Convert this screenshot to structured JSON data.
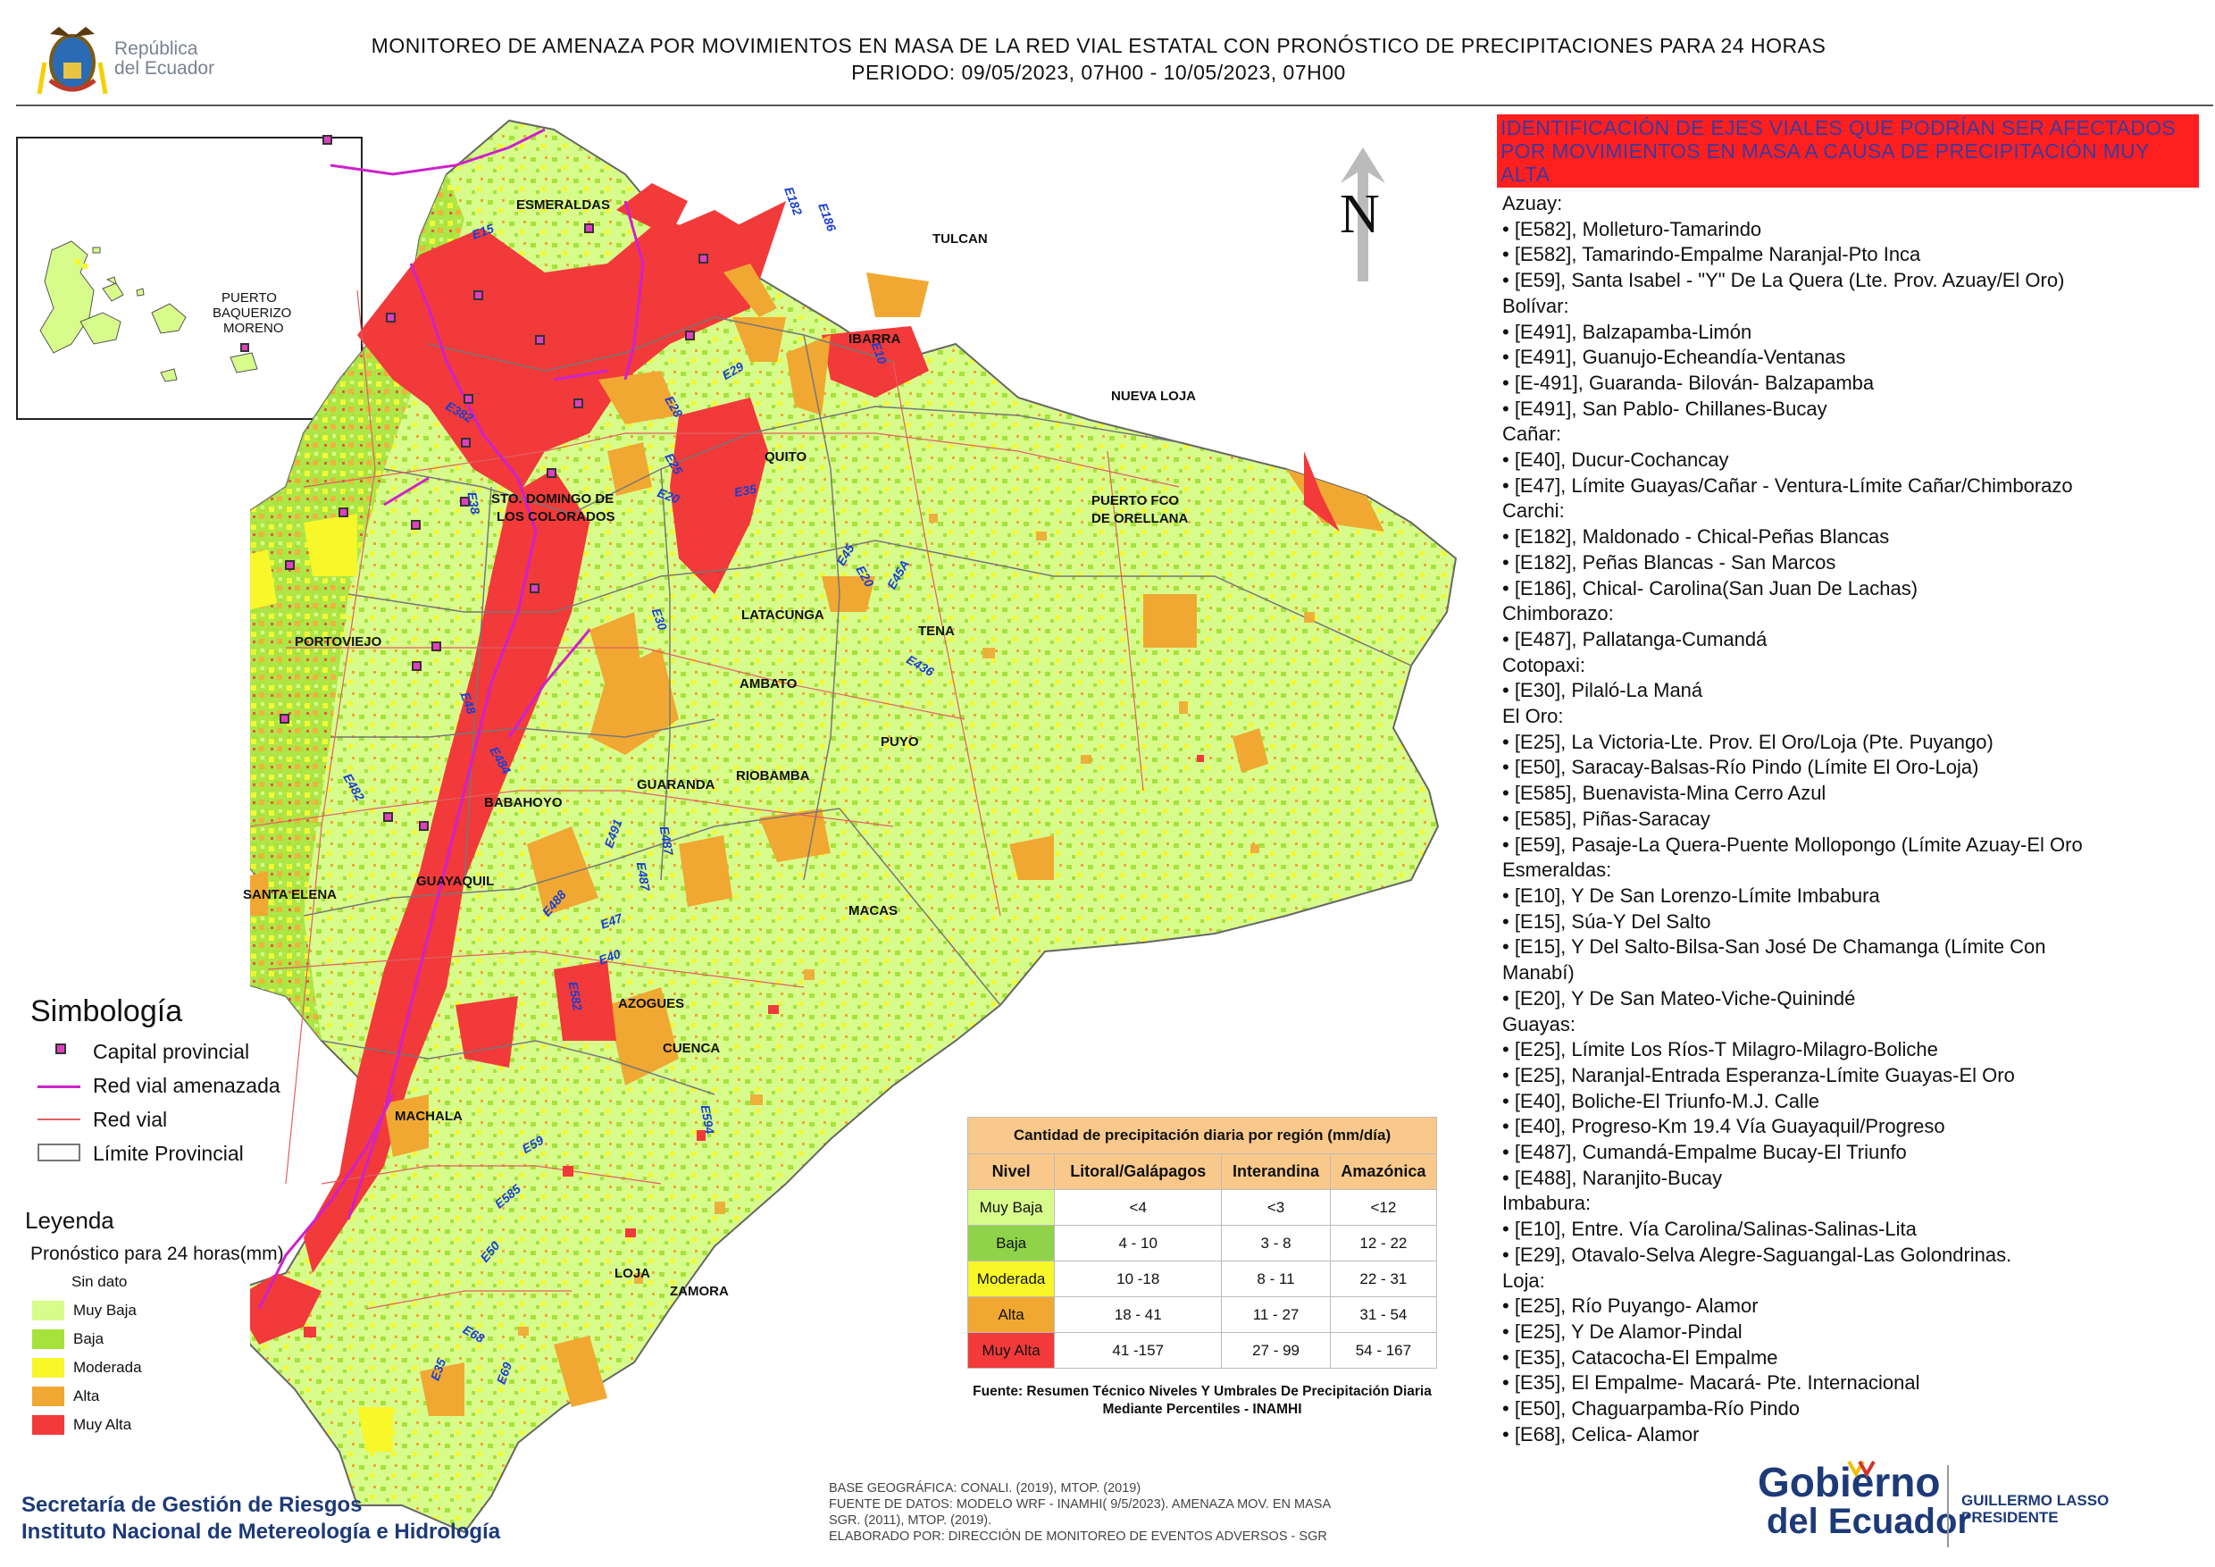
{
  "header": {
    "logo_text": "República\ndel Ecuador",
    "title_line1": "MONITOREO DE AMENAZA POR MOVIMIENTOS EN MASA DE LA RED VIAL  ESTATAL  CON PRONÓSTICO  DE  PRECIPITACIONES PARA 24 HORAS",
    "title_line2": "PERIODO: 09/05/2023, 07H00 - 10/05/2023, 07H00"
  },
  "inset": {
    "label_line1": "PUERTO",
    "label_line2": "BAQUERIZO",
    "label_line3": "MORENO"
  },
  "north_label": "N",
  "cities": [
    {
      "name": "ESMERALDAS"
    },
    {
      "name": "TULCAN"
    },
    {
      "name": "IBARRA"
    },
    {
      "name": "NUEVA LOJA"
    },
    {
      "name": "QUITO"
    },
    {
      "name": "STO. DOMINGO DE"
    },
    {
      "name": "LOS COLORADOS"
    },
    {
      "name": "PUERTO FCO"
    },
    {
      "name": "DE ORELLANA"
    },
    {
      "name": "LATACUNGA"
    },
    {
      "name": "TENA"
    },
    {
      "name": "PORTOVIEJO"
    },
    {
      "name": "AMBATO"
    },
    {
      "name": "PUYO"
    },
    {
      "name": "GUARANDA"
    },
    {
      "name": "RIOBAMBA"
    },
    {
      "name": "BABAHOYO"
    },
    {
      "name": "SANTA ELENA"
    },
    {
      "name": "GUAYAQUIL"
    },
    {
      "name": "MACAS"
    },
    {
      "name": "AZOGUES"
    },
    {
      "name": "CUENCA"
    },
    {
      "name": "MACHALA"
    },
    {
      "name": "LOJA"
    },
    {
      "name": "ZAMORA"
    }
  ],
  "roads": [
    "E15",
    "E182",
    "E186",
    "E10",
    "E28",
    "E29",
    "E382",
    "E25",
    "E20",
    "E35",
    "E38",
    "E30",
    "E45A",
    "E20",
    "E45",
    "E436",
    "E48",
    "E484",
    "E482",
    "E491",
    "E487",
    "E487",
    "E488",
    "E47",
    "E40",
    "E582",
    "E594",
    "E59",
    "E585",
    "E50",
    "E68",
    "E35",
    "E69"
  ],
  "alert": {
    "header": "IDENTIFICACIÓN DE EJES VIALES QUE PODRÍAN SER AFECTADOS POR MOVIMIENTOS EN MASA A CAUSA DE PRECIPITACIÓN MUY ALTA",
    "lines": [
      "Azuay:",
      "• [E582], Molleturo-Tamarindo",
      "• [E582], Tamarindo-Empalme Naranjal-Pto Inca",
      "• [E59], Santa Isabel - \"Y\" De La Quera (Lte. Prov. Azuay/El Oro)",
      "Bolívar:",
      "• [E491], Balzapamba-Limón",
      "• [E491], Guanujo-Echeandía-Ventanas",
      "• [E-491], Guaranda- Bilován- Balzapamba",
      "• [E491], San Pablo- Chillanes-Bucay",
      "Cañar:",
      "• [E40], Ducur-Cochancay",
      "• [E47], Límite Guayas/Cañar - Ventura-Límite Cañar/Chimborazo",
      "Carchi:",
      "• [E182], Maldonado - Chical-Peñas Blancas",
      "• [E182], Peñas Blancas - San Marcos",
      "• [E186], Chical- Carolina(San Juan De Lachas)",
      "Chimborazo:",
      "• [E487], Pallatanga-Cumandá",
      "Cotopaxi:",
      "• [E30], Pilaló-La Maná",
      "El Oro:",
      "• [E25], La Victoria-Lte. Prov. El Oro/Loja (Pte. Puyango)",
      "• [E50], Saracay-Balsas-Río Pindo (Límite El Oro-Loja)",
      "• [E585], Buenavista-Mina Cerro Azul",
      "• [E585], Piñas-Saracay",
      "• [E59], Pasaje-La Quera-Puente Mollopongo (Límite Azuay-El Oro",
      "Esmeraldas:",
      "• [E10], Y De San Lorenzo-Límite Imbabura",
      "• [E15], Súa-Y Del Salto",
      "• [E15], Y Del Salto-Bilsa-San José De Chamanga (Límite Con",
      "Manabí)",
      "• [E20], Y De San Mateo-Viche-Quinindé",
      "Guayas:",
      "• [E25], Límite Los Ríos-T Milagro-Milagro-Boliche",
      "• [E25], Naranjal-Entrada Esperanza-Límite Guayas-El Oro",
      "• [E40], Boliche-El Triunfo-M.J. Calle",
      "• [E40], Progreso-Km 19.4 Vía Guayaquil/Progreso",
      "• [E487], Cumandá-Empalme Bucay-El Triunfo",
      "• [E488], Naranjito-Bucay",
      "Imbabura:",
      "• [E10], Entre. Vía Carolina/Salinas-Salinas-Lita",
      "• [E29], Otavalo-Selva Alegre-Saguangal-Las Golondrinas.",
      "Loja:",
      "• [E25], Río Puyango- Alamor",
      "• [E25], Y De Alamor-Pindal",
      "• [E35], Catacocha-El Empalme",
      "• [E35], El Empalme- Macará- Pte. Internacional",
      "• [E50], Chaguarpamba-Río Pindo",
      "• [E68], Celica- Alamor"
    ]
  },
  "simbologia": {
    "title": "Simbología",
    "items": [
      "Capital provincial",
      "Red vial amenazada",
      "Red vial",
      "Límite Provincial"
    ]
  },
  "leyenda": {
    "title": "Leyenda",
    "subtitle": "Pronóstico para 24 horas(mm)",
    "items": [
      {
        "label": "Sin dato",
        "color": "#ffffff"
      },
      {
        "label": "Muy Baja",
        "color": "#d7fc8c"
      },
      {
        "label": "Baja",
        "color": "#a6e23a"
      },
      {
        "label": "Moderada",
        "color": "#f7f72a"
      },
      {
        "label": "Alta",
        "color": "#f0a832"
      },
      {
        "label": "Muy Alta",
        "color": "#f23a3a"
      }
    ]
  },
  "precip_table": {
    "title": "Cantidad de precipitación diaria por región (mm/día)",
    "headers": [
      "Nivel",
      "Litoral/Galápagos",
      "Interandina",
      "Amazónica"
    ],
    "rows": [
      {
        "level": "Muy Baja",
        "color": "#d7fc8c",
        "litoral": "<4",
        "interandina": "<3",
        "amazonica": "<12"
      },
      {
        "level": "Baja",
        "color": "#8fd34a",
        "litoral": "4 - 10",
        "interandina": "3 - 8",
        "amazonica": "12 - 22"
      },
      {
        "level": "Moderada",
        "color": "#f7f72a",
        "litoral": "10 -18",
        "interandina": "8 - 11",
        "amazonica": "22 - 31"
      },
      {
        "level": "Alta",
        "color": "#f0a832",
        "litoral": "18 - 41",
        "interandina": "11 - 27",
        "amazonica": "31 - 54"
      },
      {
        "level": "Muy Alta",
        "color": "#f23a3a",
        "litoral": "41 -157",
        "interandina": "27 - 99",
        "amazonica": "54 - 167"
      }
    ],
    "source": "Fuente: Resumen Técnico Niveles Y Umbrales De Precipitación Diaria Mediante Percentiles - INAMHI"
  },
  "footer": {
    "org_line1": "Secretaría de Gestión de Riesgos",
    "org_line2": "Instituto Nacional de Metereología e Hidrología",
    "meta_line1": "BASE GEOGRÁFICA: CONALI. (2019), MTOP. (2019)",
    "meta_line2": "FUENTE DE DATOS: MODELO WRF - INAMHI( 9/5/2023).  AMENAZA MOV. EN MASA",
    "meta_line3": "SGR. (2011), MTOP. (2019).",
    "meta_line4": "ELABORADO POR: DIRECCIÓN DE MONITOREO DE EVENTOS ADVERSOS - SGR",
    "gob_line1": "Gobierno",
    "gob_line2": "del Ecuador",
    "president_line1": "GUILLERMO LASSO",
    "president_line2": "PRESIDENTE"
  }
}
